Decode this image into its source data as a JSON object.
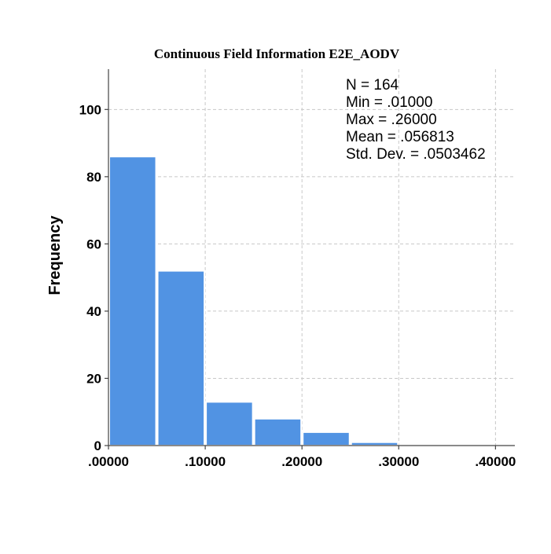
{
  "chart_data": {
    "type": "bar",
    "title": "Continuous Field Information E2E_AODV",
    "xlabel": "",
    "ylabel": "Frequency",
    "bins": [
      {
        "from": 0.0,
        "to": 0.05,
        "count": 86
      },
      {
        "from": 0.05,
        "to": 0.1,
        "count": 52
      },
      {
        "from": 0.1,
        "to": 0.15,
        "count": 13
      },
      {
        "from": 0.15,
        "to": 0.2,
        "count": 8
      },
      {
        "from": 0.2,
        "to": 0.25,
        "count": 4
      },
      {
        "from": 0.25,
        "to": 0.3,
        "count": 1
      }
    ],
    "xlim": [
      0.0,
      0.42
    ],
    "ylim": [
      0,
      112
    ],
    "x_ticks": [
      0.0,
      0.1,
      0.2,
      0.3,
      0.4
    ],
    "x_tick_labels": [
      ".00000",
      ".10000",
      ".20000",
      ".30000",
      ".40000"
    ],
    "y_ticks": [
      0,
      20,
      40,
      60,
      80,
      100
    ],
    "y_tick_labels": [
      "0",
      "20",
      "40",
      "60",
      "80",
      "100"
    ],
    "grid": true,
    "stats": {
      "n": "N = 164",
      "min": "Min = .01000",
      "max": "Max = .26000",
      "mean": "Mean = .056813",
      "std": "Std. Dev. = .0503462"
    },
    "colors": {
      "bar": "#5193e3",
      "grid": "#c8c8c8"
    }
  }
}
